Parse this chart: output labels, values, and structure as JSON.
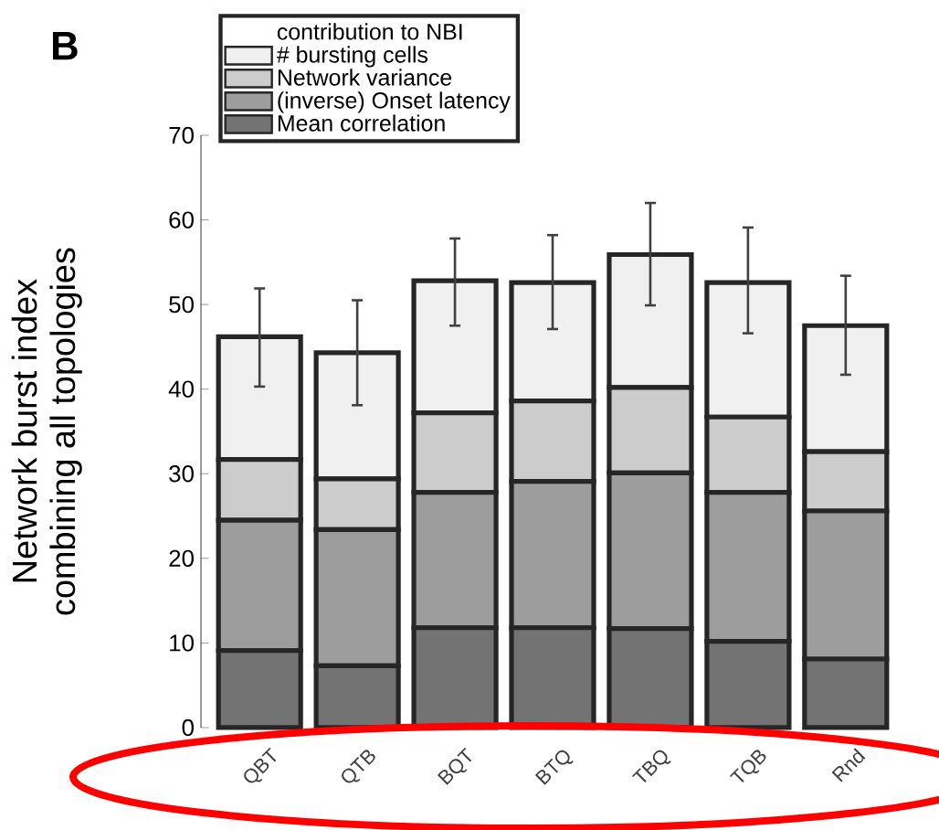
{
  "chart_data": {
    "type": "bar",
    "stacked": true,
    "annotations": [
      "B"
    ],
    "ylabel": "Network burst index\ncombining all topologies",
    "legend_title": "contribution to NBI",
    "categories": [
      "QBT",
      "QTB",
      "BQT",
      "BTQ",
      "TBQ",
      "TQB",
      "Rnd"
    ],
    "series": [
      {
        "name": "Mean correlation",
        "color": "#737373",
        "values": [
          9.1,
          7.3,
          11.8,
          11.8,
          11.7,
          10.2,
          8.1
        ]
      },
      {
        "name": "(inverse) Onset latency",
        "color": "#9c9d9c",
        "values": [
          15.4,
          16.1,
          16.0,
          17.3,
          18.4,
          17.6,
          17.5
        ]
      },
      {
        "name": "Network variance",
        "color": "#cbcccb",
        "values": [
          7.2,
          6.0,
          9.4,
          9.5,
          10.1,
          8.9,
          7.0
        ]
      },
      {
        "name": "# bursting cells",
        "color": "#f0f0f0",
        "values": [
          14.5,
          14.9,
          15.6,
          14.0,
          15.7,
          15.9,
          14.9
        ],
        "errors": [
          [
            40.3,
            51.9
          ],
          [
            38.1,
            50.5
          ],
          [
            47.5,
            57.8
          ],
          [
            47.1,
            58.2
          ],
          [
            49.9,
            62.0
          ],
          [
            46.6,
            59.1
          ],
          [
            41.7,
            53.4
          ]
        ]
      }
    ],
    "ylim": [
      0,
      70
    ],
    "yticks": [
      0,
      10,
      20,
      30,
      40,
      50,
      60,
      70
    ],
    "grid": false,
    "legend": "top left"
  }
}
